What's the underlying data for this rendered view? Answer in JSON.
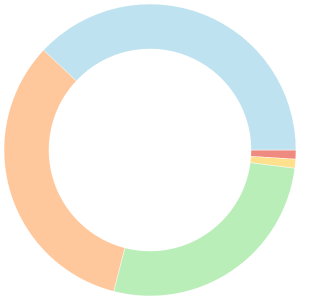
{
  "chart_data": {
    "type": "doughnut",
    "values": [
      1,
      1,
      27,
      33,
      38
    ],
    "colors": [
      "#ef8a80",
      "#ffe08c",
      "#b9eeb8",
      "#ffc89c",
      "#bee2ef"
    ]
  }
}
